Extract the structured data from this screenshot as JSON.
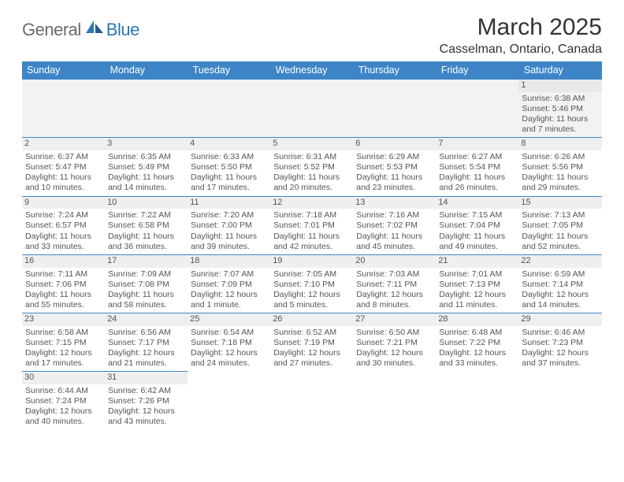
{
  "brand": {
    "general": "General",
    "blue": "Blue"
  },
  "title": "March 2025",
  "subtitle": "Casselman, Ontario, Canada",
  "colors": {
    "header_bg": "#3d85c6",
    "header_text": "#ffffff",
    "border": "#3d85c6",
    "daynum_bg": "#efefef",
    "muted_bg": "#f2f2f2",
    "text": "#555555",
    "logo_gray": "#6b6b6b",
    "logo_blue": "#2b76b8"
  },
  "weekdays": [
    "Sunday",
    "Monday",
    "Tuesday",
    "Wednesday",
    "Thursday",
    "Friday",
    "Saturday"
  ],
  "weeks": [
    [
      null,
      null,
      null,
      null,
      null,
      null,
      {
        "n": "1",
        "sr": "6:38 AM",
        "ss": "5:46 PM",
        "dl": "11 hours and 7 minutes."
      }
    ],
    [
      {
        "n": "2",
        "sr": "6:37 AM",
        "ss": "5:47 PM",
        "dl": "11 hours and 10 minutes."
      },
      {
        "n": "3",
        "sr": "6:35 AM",
        "ss": "5:49 PM",
        "dl": "11 hours and 14 minutes."
      },
      {
        "n": "4",
        "sr": "6:33 AM",
        "ss": "5:50 PM",
        "dl": "11 hours and 17 minutes."
      },
      {
        "n": "5",
        "sr": "6:31 AM",
        "ss": "5:52 PM",
        "dl": "11 hours and 20 minutes."
      },
      {
        "n": "6",
        "sr": "6:29 AM",
        "ss": "5:53 PM",
        "dl": "11 hours and 23 minutes."
      },
      {
        "n": "7",
        "sr": "6:27 AM",
        "ss": "5:54 PM",
        "dl": "11 hours and 26 minutes."
      },
      {
        "n": "8",
        "sr": "6:26 AM",
        "ss": "5:56 PM",
        "dl": "11 hours and 29 minutes."
      }
    ],
    [
      {
        "n": "9",
        "sr": "7:24 AM",
        "ss": "6:57 PM",
        "dl": "11 hours and 33 minutes."
      },
      {
        "n": "10",
        "sr": "7:22 AM",
        "ss": "6:58 PM",
        "dl": "11 hours and 36 minutes."
      },
      {
        "n": "11",
        "sr": "7:20 AM",
        "ss": "7:00 PM",
        "dl": "11 hours and 39 minutes."
      },
      {
        "n": "12",
        "sr": "7:18 AM",
        "ss": "7:01 PM",
        "dl": "11 hours and 42 minutes."
      },
      {
        "n": "13",
        "sr": "7:16 AM",
        "ss": "7:02 PM",
        "dl": "11 hours and 45 minutes."
      },
      {
        "n": "14",
        "sr": "7:15 AM",
        "ss": "7:04 PM",
        "dl": "11 hours and 49 minutes."
      },
      {
        "n": "15",
        "sr": "7:13 AM",
        "ss": "7:05 PM",
        "dl": "11 hours and 52 minutes."
      }
    ],
    [
      {
        "n": "16",
        "sr": "7:11 AM",
        "ss": "7:06 PM",
        "dl": "11 hours and 55 minutes."
      },
      {
        "n": "17",
        "sr": "7:09 AM",
        "ss": "7:08 PM",
        "dl": "11 hours and 58 minutes."
      },
      {
        "n": "18",
        "sr": "7:07 AM",
        "ss": "7:09 PM",
        "dl": "12 hours and 1 minute."
      },
      {
        "n": "19",
        "sr": "7:05 AM",
        "ss": "7:10 PM",
        "dl": "12 hours and 5 minutes."
      },
      {
        "n": "20",
        "sr": "7:03 AM",
        "ss": "7:11 PM",
        "dl": "12 hours and 8 minutes."
      },
      {
        "n": "21",
        "sr": "7:01 AM",
        "ss": "7:13 PM",
        "dl": "12 hours and 11 minutes."
      },
      {
        "n": "22",
        "sr": "6:59 AM",
        "ss": "7:14 PM",
        "dl": "12 hours and 14 minutes."
      }
    ],
    [
      {
        "n": "23",
        "sr": "6:58 AM",
        "ss": "7:15 PM",
        "dl": "12 hours and 17 minutes."
      },
      {
        "n": "24",
        "sr": "6:56 AM",
        "ss": "7:17 PM",
        "dl": "12 hours and 21 minutes."
      },
      {
        "n": "25",
        "sr": "6:54 AM",
        "ss": "7:18 PM",
        "dl": "12 hours and 24 minutes."
      },
      {
        "n": "26",
        "sr": "6:52 AM",
        "ss": "7:19 PM",
        "dl": "12 hours and 27 minutes."
      },
      {
        "n": "27",
        "sr": "6:50 AM",
        "ss": "7:21 PM",
        "dl": "12 hours and 30 minutes."
      },
      {
        "n": "28",
        "sr": "6:48 AM",
        "ss": "7:22 PM",
        "dl": "12 hours and 33 minutes."
      },
      {
        "n": "29",
        "sr": "6:46 AM",
        "ss": "7:23 PM",
        "dl": "12 hours and 37 minutes."
      }
    ],
    [
      {
        "n": "30",
        "sr": "6:44 AM",
        "ss": "7:24 PM",
        "dl": "12 hours and 40 minutes."
      },
      {
        "n": "31",
        "sr": "6:42 AM",
        "ss": "7:26 PM",
        "dl": "12 hours and 43 minutes."
      },
      null,
      null,
      null,
      null,
      null
    ]
  ],
  "labels": {
    "sunrise": "Sunrise:",
    "sunset": "Sunset:",
    "daylight": "Daylight:"
  }
}
